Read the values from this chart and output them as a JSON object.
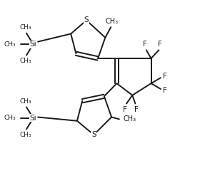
{
  "bg_color": "#ffffff",
  "line_color": "#1a1a1a",
  "line_width": 1.4,
  "font_size": 7.5,
  "fig_width": 2.94,
  "fig_height": 2.5,
  "dpi": 100,
  "xlim": [
    0,
    10
  ],
  "ylim": [
    0,
    8.5
  ]
}
